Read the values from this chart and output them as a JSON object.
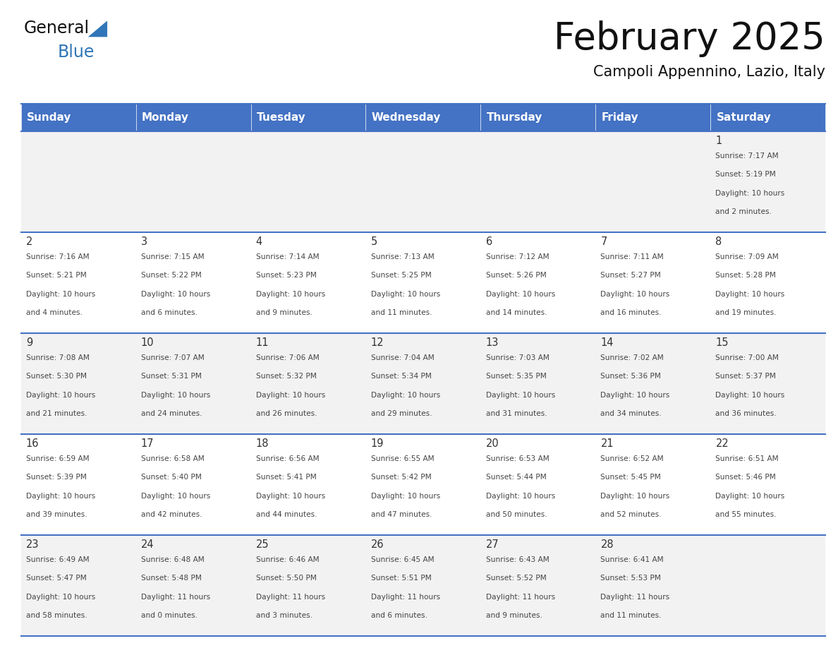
{
  "title": "February 2025",
  "subtitle": "Campoli Appennino, Lazio, Italy",
  "header_bg": "#4472C4",
  "header_text_color": "#FFFFFF",
  "day_names": [
    "Sunday",
    "Monday",
    "Tuesday",
    "Wednesday",
    "Thursday",
    "Friday",
    "Saturday"
  ],
  "row_bg_even": "#F2F2F2",
  "row_bg_odd": "#FFFFFF",
  "cell_text_color": "#444444",
  "day_num_color": "#333333",
  "border_color": "#4472C4",
  "calendar_data": [
    [
      null,
      null,
      null,
      null,
      null,
      null,
      {
        "day": 1,
        "sunrise": "7:17 AM",
        "sunset": "5:19 PM",
        "daylight": "10 hours",
        "daylight2": "and 2 minutes."
      }
    ],
    [
      {
        "day": 2,
        "sunrise": "7:16 AM",
        "sunset": "5:21 PM",
        "daylight": "10 hours",
        "daylight2": "and 4 minutes."
      },
      {
        "day": 3,
        "sunrise": "7:15 AM",
        "sunset": "5:22 PM",
        "daylight": "10 hours",
        "daylight2": "and 6 minutes."
      },
      {
        "day": 4,
        "sunrise": "7:14 AM",
        "sunset": "5:23 PM",
        "daylight": "10 hours",
        "daylight2": "and 9 minutes."
      },
      {
        "day": 5,
        "sunrise": "7:13 AM",
        "sunset": "5:25 PM",
        "daylight": "10 hours",
        "daylight2": "and 11 minutes."
      },
      {
        "day": 6,
        "sunrise": "7:12 AM",
        "sunset": "5:26 PM",
        "daylight": "10 hours",
        "daylight2": "and 14 minutes."
      },
      {
        "day": 7,
        "sunrise": "7:11 AM",
        "sunset": "5:27 PM",
        "daylight": "10 hours",
        "daylight2": "and 16 minutes."
      },
      {
        "day": 8,
        "sunrise": "7:09 AM",
        "sunset": "5:28 PM",
        "daylight": "10 hours",
        "daylight2": "and 19 minutes."
      }
    ],
    [
      {
        "day": 9,
        "sunrise": "7:08 AM",
        "sunset": "5:30 PM",
        "daylight": "10 hours",
        "daylight2": "and 21 minutes."
      },
      {
        "day": 10,
        "sunrise": "7:07 AM",
        "sunset": "5:31 PM",
        "daylight": "10 hours",
        "daylight2": "and 24 minutes."
      },
      {
        "day": 11,
        "sunrise": "7:06 AM",
        "sunset": "5:32 PM",
        "daylight": "10 hours",
        "daylight2": "and 26 minutes."
      },
      {
        "day": 12,
        "sunrise": "7:04 AM",
        "sunset": "5:34 PM",
        "daylight": "10 hours",
        "daylight2": "and 29 minutes."
      },
      {
        "day": 13,
        "sunrise": "7:03 AM",
        "sunset": "5:35 PM",
        "daylight": "10 hours",
        "daylight2": "and 31 minutes."
      },
      {
        "day": 14,
        "sunrise": "7:02 AM",
        "sunset": "5:36 PM",
        "daylight": "10 hours",
        "daylight2": "and 34 minutes."
      },
      {
        "day": 15,
        "sunrise": "7:00 AM",
        "sunset": "5:37 PM",
        "daylight": "10 hours",
        "daylight2": "and 36 minutes."
      }
    ],
    [
      {
        "day": 16,
        "sunrise": "6:59 AM",
        "sunset": "5:39 PM",
        "daylight": "10 hours",
        "daylight2": "and 39 minutes."
      },
      {
        "day": 17,
        "sunrise": "6:58 AM",
        "sunset": "5:40 PM",
        "daylight": "10 hours",
        "daylight2": "and 42 minutes."
      },
      {
        "day": 18,
        "sunrise": "6:56 AM",
        "sunset": "5:41 PM",
        "daylight": "10 hours",
        "daylight2": "and 44 minutes."
      },
      {
        "day": 19,
        "sunrise": "6:55 AM",
        "sunset": "5:42 PM",
        "daylight": "10 hours",
        "daylight2": "and 47 minutes."
      },
      {
        "day": 20,
        "sunrise": "6:53 AM",
        "sunset": "5:44 PM",
        "daylight": "10 hours",
        "daylight2": "and 50 minutes."
      },
      {
        "day": 21,
        "sunrise": "6:52 AM",
        "sunset": "5:45 PM",
        "daylight": "10 hours",
        "daylight2": "and 52 minutes."
      },
      {
        "day": 22,
        "sunrise": "6:51 AM",
        "sunset": "5:46 PM",
        "daylight": "10 hours",
        "daylight2": "and 55 minutes."
      }
    ],
    [
      {
        "day": 23,
        "sunrise": "6:49 AM",
        "sunset": "5:47 PM",
        "daylight": "10 hours",
        "daylight2": "and 58 minutes."
      },
      {
        "day": 24,
        "sunrise": "6:48 AM",
        "sunset": "5:48 PM",
        "daylight": "11 hours",
        "daylight2": "and 0 minutes."
      },
      {
        "day": 25,
        "sunrise": "6:46 AM",
        "sunset": "5:50 PM",
        "daylight": "11 hours",
        "daylight2": "and 3 minutes."
      },
      {
        "day": 26,
        "sunrise": "6:45 AM",
        "sunset": "5:51 PM",
        "daylight": "11 hours",
        "daylight2": "and 6 minutes."
      },
      {
        "day": 27,
        "sunrise": "6:43 AM",
        "sunset": "5:52 PM",
        "daylight": "11 hours",
        "daylight2": "and 9 minutes."
      },
      {
        "day": 28,
        "sunrise": "6:41 AM",
        "sunset": "5:53 PM",
        "daylight": "11 hours",
        "daylight2": "and 11 minutes."
      },
      null
    ]
  ]
}
